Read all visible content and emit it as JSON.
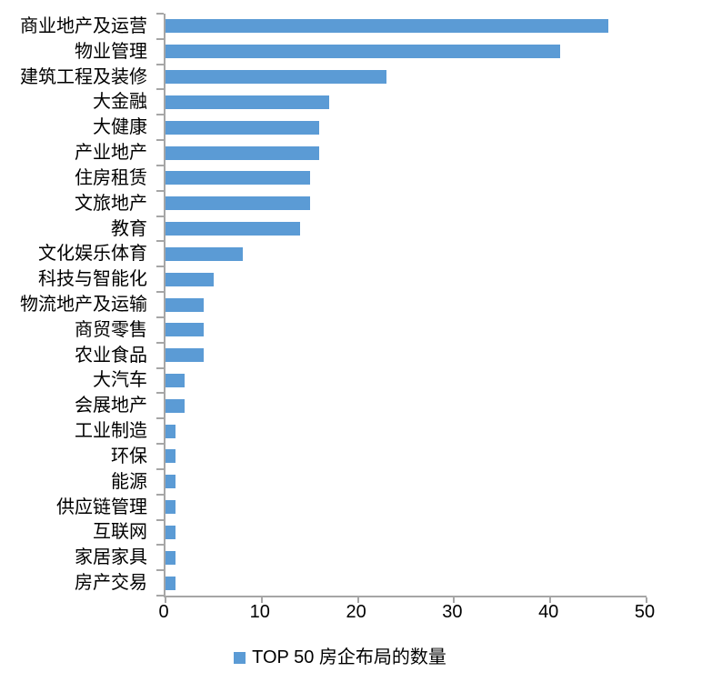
{
  "chart_data": {
    "type": "bar",
    "orientation": "horizontal",
    "title": "",
    "xlabel": "",
    "ylabel": "",
    "categories": [
      "商业地产及运营",
      "物业管理",
      "建筑工程及装修",
      "大金融",
      "大健康",
      "产业地产",
      "住房租赁",
      "文旅地产",
      "教育",
      "文化娱乐体育",
      "科技与智能化",
      "物流地产及运输",
      "商贸零售",
      "农业食品",
      "大汽车",
      "会展地产",
      "工业制造",
      "环保",
      "能源",
      "供应链管理",
      "互联网",
      "家居家具",
      "房产交易"
    ],
    "series": [
      {
        "name": "TOP 50 房企布局的数量",
        "values": [
          46,
          41,
          23,
          17,
          16,
          16,
          15,
          15,
          14,
          8,
          5,
          4,
          4,
          4,
          2,
          2,
          1,
          1,
          1,
          1,
          1,
          1,
          1
        ]
      }
    ],
    "xlim": [
      0,
      50
    ],
    "x_ticks": [
      0,
      10,
      20,
      30,
      40,
      50
    ],
    "grid": false,
    "legend_position": "bottom",
    "colors": {
      "bar": "#5B9BD5",
      "axis": "#A6A6A6",
      "text": "#000000"
    }
  }
}
